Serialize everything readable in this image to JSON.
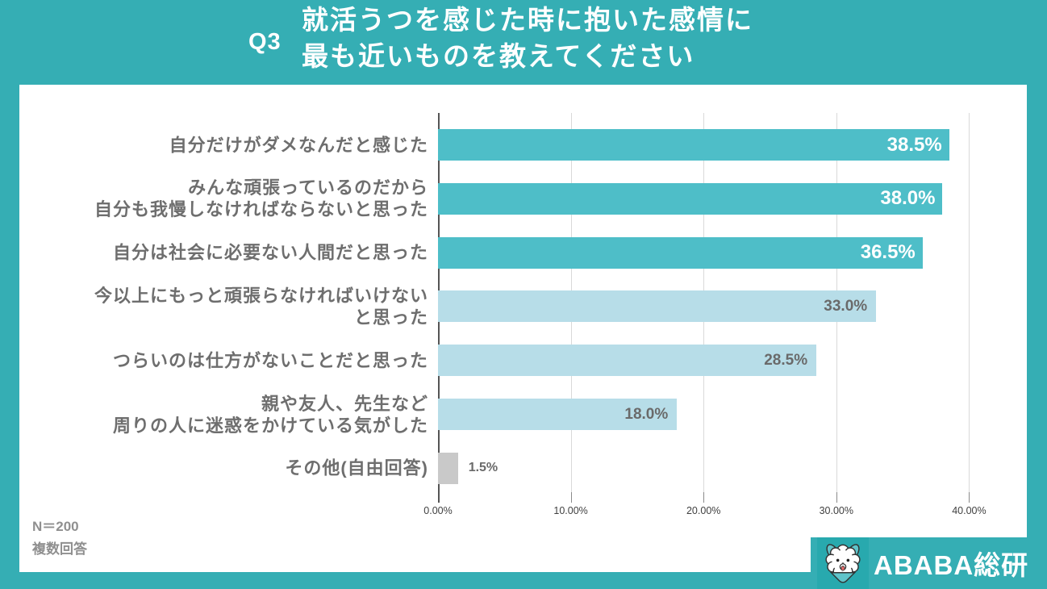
{
  "header": {
    "question_label": "Q3",
    "title_line1": "就活うつを感じた時に抱いた感情に",
    "title_line2": "最も近いものを教えてください"
  },
  "chart_data": {
    "type": "bar",
    "orientation": "horizontal",
    "title": "就活うつを感じた時に抱いた感情に最も近いものを教えてください",
    "categories": [
      "自分だけがダメなんだと感じた",
      "みんな頑張っているのだから\n自分も我慢しなければならないと思った",
      "自分は社会に必要ない人間だと思った",
      "今以上にもっと頑張らなければいけない\nと思った",
      "つらいのは仕方がないことだと思った",
      "親や友人、先生など\n周りの人に迷惑をかけている気がした",
      "その他(自由回答)"
    ],
    "values": [
      38.5,
      38.0,
      36.5,
      33.0,
      28.5,
      18.0,
      1.5
    ],
    "value_labels": [
      "38.5%",
      "38.0%",
      "36.5%",
      "33.0%",
      "28.5%",
      "18.0%",
      "1.5%"
    ],
    "bar_styles": [
      "dark",
      "dark",
      "dark",
      "light",
      "light",
      "light",
      "gray"
    ],
    "x_ticks": [
      "0.00%",
      "10.00%",
      "20.00%",
      "30.00%",
      "40.00%"
    ],
    "x_tick_values": [
      0,
      10,
      20,
      30,
      40
    ],
    "xlim": [
      0,
      42.7
    ],
    "grid": true,
    "legend": false,
    "colors": {
      "bar_dark": "#4EBEC8",
      "bar_light": "#B7DDE8",
      "bar_gray": "#C9C9C9",
      "background": "#35AEB4",
      "plot_background": "#ffffff",
      "grid_line": "#D9D9D9"
    }
  },
  "footer": {
    "n_label": "N＝200",
    "answer_type": "複数回答"
  },
  "logo": {
    "text": "ABABA総研",
    "mascot": "ababa-dog-mascot"
  }
}
